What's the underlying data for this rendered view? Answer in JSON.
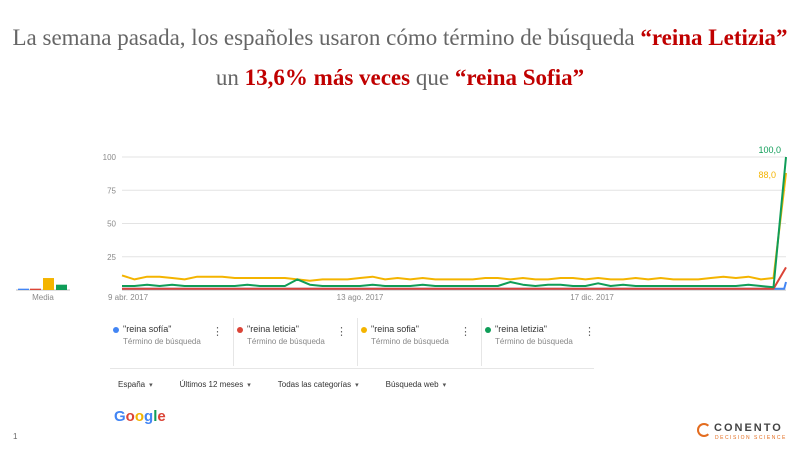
{
  "headline": {
    "part1": "La semana pasada, los españoles usaron cómo término de búsqueda ",
    "hl1": "“reina Letizia”",
    "part2": " un ",
    "hl2": "13,6% más veces",
    "part3": " que ",
    "hl3": "“reina Sofia”"
  },
  "chart_data": {
    "type": "line",
    "ylim": [
      0,
      100
    ],
    "yticks": [
      25,
      50,
      75,
      100
    ],
    "xtick_labels": [
      "9 abr. 2017",
      "13 ago. 2017",
      "17 dic. 2017"
    ],
    "average_label": "Media",
    "averages": [
      1,
      1,
      9,
      4
    ],
    "end_labels": [
      "100,0",
      "88,0"
    ],
    "series": [
      {
        "name": "\"reina sofía\"",
        "color": "#4285f4",
        "values": [
          1,
          1,
          1,
          1,
          1,
          1,
          1,
          1,
          1,
          1,
          1,
          1,
          1,
          1,
          1,
          1,
          1,
          1,
          1,
          1,
          1,
          1,
          1,
          1,
          1,
          1,
          1,
          1,
          1,
          1,
          1,
          1,
          1,
          1,
          1,
          1,
          1,
          1,
          1,
          1,
          1,
          1,
          1,
          1,
          1,
          1,
          1,
          1,
          1,
          1,
          1,
          1,
          1,
          1,
          1,
          1,
          1,
          1,
          1,
          1,
          1,
          1,
          1,
          1,
          1,
          1,
          1,
          1,
          1,
          1,
          1,
          1,
          1,
          1,
          1,
          1,
          1,
          1,
          1,
          1,
          1,
          1,
          1,
          1,
          1,
          1,
          1,
          1,
          1,
          1,
          1,
          1,
          1,
          1,
          1,
          1,
          1,
          1,
          1,
          1,
          1,
          1,
          1,
          1,
          1,
          1,
          1,
          1,
          1,
          1,
          1,
          1,
          1,
          1,
          1,
          1,
          1,
          1,
          1,
          1,
          1,
          1,
          1,
          1,
          1,
          1,
          1,
          1,
          1,
          1,
          1,
          1,
          1,
          1,
          1,
          1,
          1,
          1,
          1,
          1,
          1,
          1,
          1,
          1,
          1,
          1,
          1,
          1,
          1,
          1,
          1,
          1,
          1,
          1,
          1,
          1,
          1,
          1,
          1,
          1,
          1,
          1,
          1,
          1,
          1,
          1,
          1,
          1,
          1,
          1,
          1,
          1,
          1,
          1,
          1,
          1,
          1,
          1,
          1,
          1,
          1,
          1,
          1,
          1,
          1,
          1,
          1,
          1,
          1,
          1,
          1,
          1,
          1,
          1,
          1,
          1,
          1,
          1,
          1,
          1,
          1,
          1,
          1,
          1,
          1,
          1,
          1,
          1,
          1,
          1,
          1,
          1,
          1,
          1,
          1,
          1,
          1,
          1,
          1,
          1,
          1,
          1,
          1,
          1,
          1,
          1,
          1,
          1,
          1,
          1,
          1,
          1,
          1,
          1,
          1,
          1,
          1,
          1,
          1,
          1,
          1,
          1,
          1,
          1,
          1,
          1,
          1,
          1,
          1,
          1,
          1,
          1,
          1,
          1,
          1,
          1,
          1,
          1,
          1,
          1,
          1,
          1,
          1,
          1,
          1,
          1,
          1,
          1,
          1,
          1,
          1,
          1,
          1,
          1,
          1,
          1,
          1,
          1,
          1,
          1,
          1,
          1,
          1,
          1,
          1,
          1,
          1,
          1,
          1,
          1,
          1,
          1,
          1,
          1,
          1,
          1,
          1,
          1,
          1,
          1,
          1,
          1,
          1,
          1,
          1,
          1,
          1,
          1,
          1,
          1,
          1,
          1,
          1,
          1,
          1,
          1,
          1,
          1,
          1,
          1,
          1,
          1,
          1,
          1,
          1,
          1,
          1,
          1,
          1,
          1,
          1,
          1,
          1,
          1,
          1,
          1,
          1,
          1,
          1,
          1,
          1,
          1,
          1,
          1,
          1,
          1,
          1,
          1,
          1,
          1,
          1,
          1,
          1,
          1,
          1,
          1,
          1,
          1,
          1,
          1,
          1,
          1,
          1,
          1,
          1,
          1,
          1,
          1,
          1,
          1,
          6
        ]
      },
      {
        "name": "\"reina leticia\"",
        "color": "#db4437",
        "values": [
          1,
          1,
          1,
          1,
          1,
          1,
          1,
          1,
          1,
          1,
          1,
          1,
          1,
          1,
          1,
          1,
          1,
          1,
          1,
          1,
          1,
          1,
          1,
          1,
          1,
          1,
          1,
          1,
          1,
          1,
          1,
          1,
          1,
          1,
          1,
          1,
          1,
          1,
          1,
          1,
          1,
          1,
          1,
          1,
          1,
          1,
          1,
          1,
          1,
          1,
          1,
          1,
          1,
          17
        ]
      },
      {
        "name": "\"reina sofia\"",
        "color": "#f4b400",
        "values": [
          11,
          8,
          10,
          10,
          9,
          8,
          10,
          10,
          10,
          9,
          9,
          9,
          9,
          9,
          8,
          7,
          8,
          8,
          8,
          9,
          10,
          8,
          9,
          8,
          9,
          8,
          8,
          8,
          8,
          9,
          9,
          8,
          9,
          8,
          8,
          9,
          9,
          8,
          9,
          8,
          8,
          9,
          8,
          9,
          8,
          8,
          8,
          9,
          10,
          9,
          10,
          8,
          9,
          88
        ]
      },
      {
        "name": "\"reina letizia\"",
        "color": "#0f9d58",
        "values": [
          3,
          3,
          4,
          3,
          4,
          3,
          3,
          3,
          3,
          3,
          4,
          3,
          3,
          3,
          8,
          4,
          3,
          3,
          3,
          3,
          4,
          3,
          3,
          3,
          4,
          3,
          3,
          3,
          3,
          3,
          3,
          6,
          4,
          3,
          4,
          4,
          3,
          3,
          5,
          3,
          4,
          3,
          3,
          3,
          3,
          3,
          3,
          3,
          3,
          3,
          4,
          3,
          2,
          100
        ]
      }
    ]
  },
  "legend": [
    {
      "name": "\"reina sofía\"",
      "sub": "Término de búsqueda",
      "color": "#4285f4"
    },
    {
      "name": "\"reina leticia\"",
      "sub": "Término de búsqueda",
      "color": "#db4437"
    },
    {
      "name": "\"reina sofia\"",
      "sub": "Término de búsqueda",
      "color": "#f4b400"
    },
    {
      "name": "\"reina letizia\"",
      "sub": "Término de búsqueda",
      "color": "#0f9d58"
    }
  ],
  "legend_menu_glyph": "⋮",
  "filters": {
    "region": "España",
    "period": "Últimos 12 meses",
    "category": "Todas las categorías",
    "search_type": "Búsqueda web"
  },
  "dropdown_caret": "▾",
  "google": {
    "logo_letters": [
      "G",
      "o",
      "o",
      "g",
      "l",
      "e"
    ],
    "logo_colors": [
      "#4285f4",
      "#db4437",
      "#f4b400",
      "#4285f4",
      "#0f9d58",
      "#db4437"
    ]
  },
  "conento": {
    "name": "CONENTO",
    "tagline": "DECISION SCIENCE"
  },
  "page_number": "1"
}
